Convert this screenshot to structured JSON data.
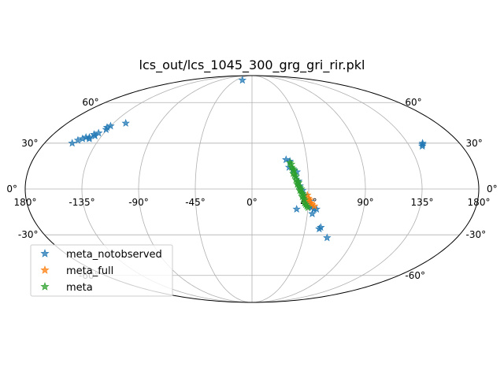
{
  "chart_data": {
    "type": "scatter",
    "projection": "mollweide",
    "title": "lcs_out/lcs_1045_300_grg_gri_rir.pkl",
    "xlabel": "",
    "ylabel": "",
    "grid": true,
    "xlim": [
      -180,
      180
    ],
    "ylim": [
      -90,
      90
    ],
    "lon_ticks": [
      {
        "value": -180,
        "label": "180°"
      },
      {
        "value": -135,
        "label": "-135°"
      },
      {
        "value": -90,
        "label": "-90°"
      },
      {
        "value": -45,
        "label": "-45°"
      },
      {
        "value": 0,
        "label": "0°"
      },
      {
        "value": 45,
        "label": "45°"
      },
      {
        "value": 90,
        "label": "90°"
      },
      {
        "value": 135,
        "label": "135°"
      },
      {
        "value": 180,
        "label": "180°"
      }
    ],
    "lat_ticks": [
      {
        "value": 60,
        "label": "60°"
      },
      {
        "value": 30,
        "label": "30°"
      },
      {
        "value": 0,
        "label": "0°"
      },
      {
        "value": -30,
        "label": "-30°"
      },
      {
        "value": -60,
        "label": "-60°"
      }
    ],
    "legend": {
      "placement": "lower-left"
    },
    "series": [
      {
        "name": "meta_notobserved",
        "color": "#1f77b4",
        "marker": "star",
        "points": [
          {
            "lon": -27,
            "lat": 82
          },
          {
            "lon": -123,
            "lat": 44
          },
          {
            "lon": -135,
            "lat": 42
          },
          {
            "lon": -137,
            "lat": 41
          },
          {
            "lon": -136,
            "lat": 39.5
          },
          {
            "lon": -140,
            "lat": 37
          },
          {
            "lon": -141,
            "lat": 35
          },
          {
            "lon": -143,
            "lat": 36
          },
          {
            "lon": -145,
            "lat": 34
          },
          {
            "lon": -144,
            "lat": 33
          },
          {
            "lon": -148,
            "lat": 34
          },
          {
            "lon": -150,
            "lat": 33
          },
          {
            "lon": -153,
            "lat": 32
          },
          {
            "lon": -156,
            "lat": 30
          },
          {
            "lon": 148,
            "lat": 30
          },
          {
            "lon": 147,
            "lat": 29
          },
          {
            "lon": 146,
            "lat": 28
          },
          {
            "lon": 28,
            "lat": 19
          },
          {
            "lon": 31,
            "lat": 18
          },
          {
            "lon": 30,
            "lat": 14
          },
          {
            "lon": 33,
            "lat": 12
          },
          {
            "lon": 36,
            "lat": 11
          },
          {
            "lon": 35,
            "lat": 8
          },
          {
            "lon": 37,
            "lat": 5
          },
          {
            "lon": 38,
            "lat": 2
          },
          {
            "lon": 40,
            "lat": -1
          },
          {
            "lon": 42,
            "lat": -4
          },
          {
            "lon": 46,
            "lat": -8
          },
          {
            "lon": 47,
            "lat": -11
          },
          {
            "lon": 48,
            "lat": -12
          },
          {
            "lon": 50,
            "lat": -13
          },
          {
            "lon": 52,
            "lat": -13
          },
          {
            "lon": 49,
            "lat": -16
          },
          {
            "lon": 36,
            "lat": -13
          },
          {
            "lon": 58,
            "lat": -25
          },
          {
            "lon": 57,
            "lat": -26
          },
          {
            "lon": 66,
            "lat": -32
          }
        ]
      },
      {
        "name": "meta_full",
        "color": "#ff7f0e",
        "marker": "star",
        "points": [
          {
            "lon": 44,
            "lat": -4
          },
          {
            "lon": 45,
            "lat": -6
          },
          {
            "lon": 46,
            "lat": -7
          },
          {
            "lon": 47,
            "lat": -9
          },
          {
            "lon": 48,
            "lat": -10
          },
          {
            "lon": 50,
            "lat": -11
          },
          {
            "lon": 43,
            "lat": -8
          }
        ]
      },
      {
        "name": "meta",
        "color": "#2ca02c",
        "marker": "star",
        "points": [
          {
            "lon": 31,
            "lat": 17
          },
          {
            "lon": 32,
            "lat": 16
          },
          {
            "lon": 32,
            "lat": 14
          },
          {
            "lon": 33,
            "lat": 13
          },
          {
            "lon": 34,
            "lat": 12
          },
          {
            "lon": 33,
            "lat": 10
          },
          {
            "lon": 34,
            "lat": 9
          },
          {
            "lon": 35,
            "lat": 8
          },
          {
            "lon": 35,
            "lat": 6
          },
          {
            "lon": 36,
            "lat": 5
          },
          {
            "lon": 37,
            "lat": 4
          },
          {
            "lon": 37,
            "lat": 2
          },
          {
            "lon": 38,
            "lat": 1
          },
          {
            "lon": 38,
            "lat": -1
          },
          {
            "lon": 39,
            "lat": -2
          },
          {
            "lon": 40,
            "lat": -3
          },
          {
            "lon": 40,
            "lat": -5
          },
          {
            "lon": 41,
            "lat": -6
          },
          {
            "lon": 42,
            "lat": -7
          },
          {
            "lon": 42,
            "lat": -9
          },
          {
            "lon": 43,
            "lat": -10
          },
          {
            "lon": 44,
            "lat": -11
          },
          {
            "lon": 45,
            "lat": -12
          },
          {
            "lon": 36,
            "lat": 3
          },
          {
            "lon": 39,
            "lat": 0
          },
          {
            "lon": 41,
            "lat": -4
          }
        ]
      }
    ]
  }
}
